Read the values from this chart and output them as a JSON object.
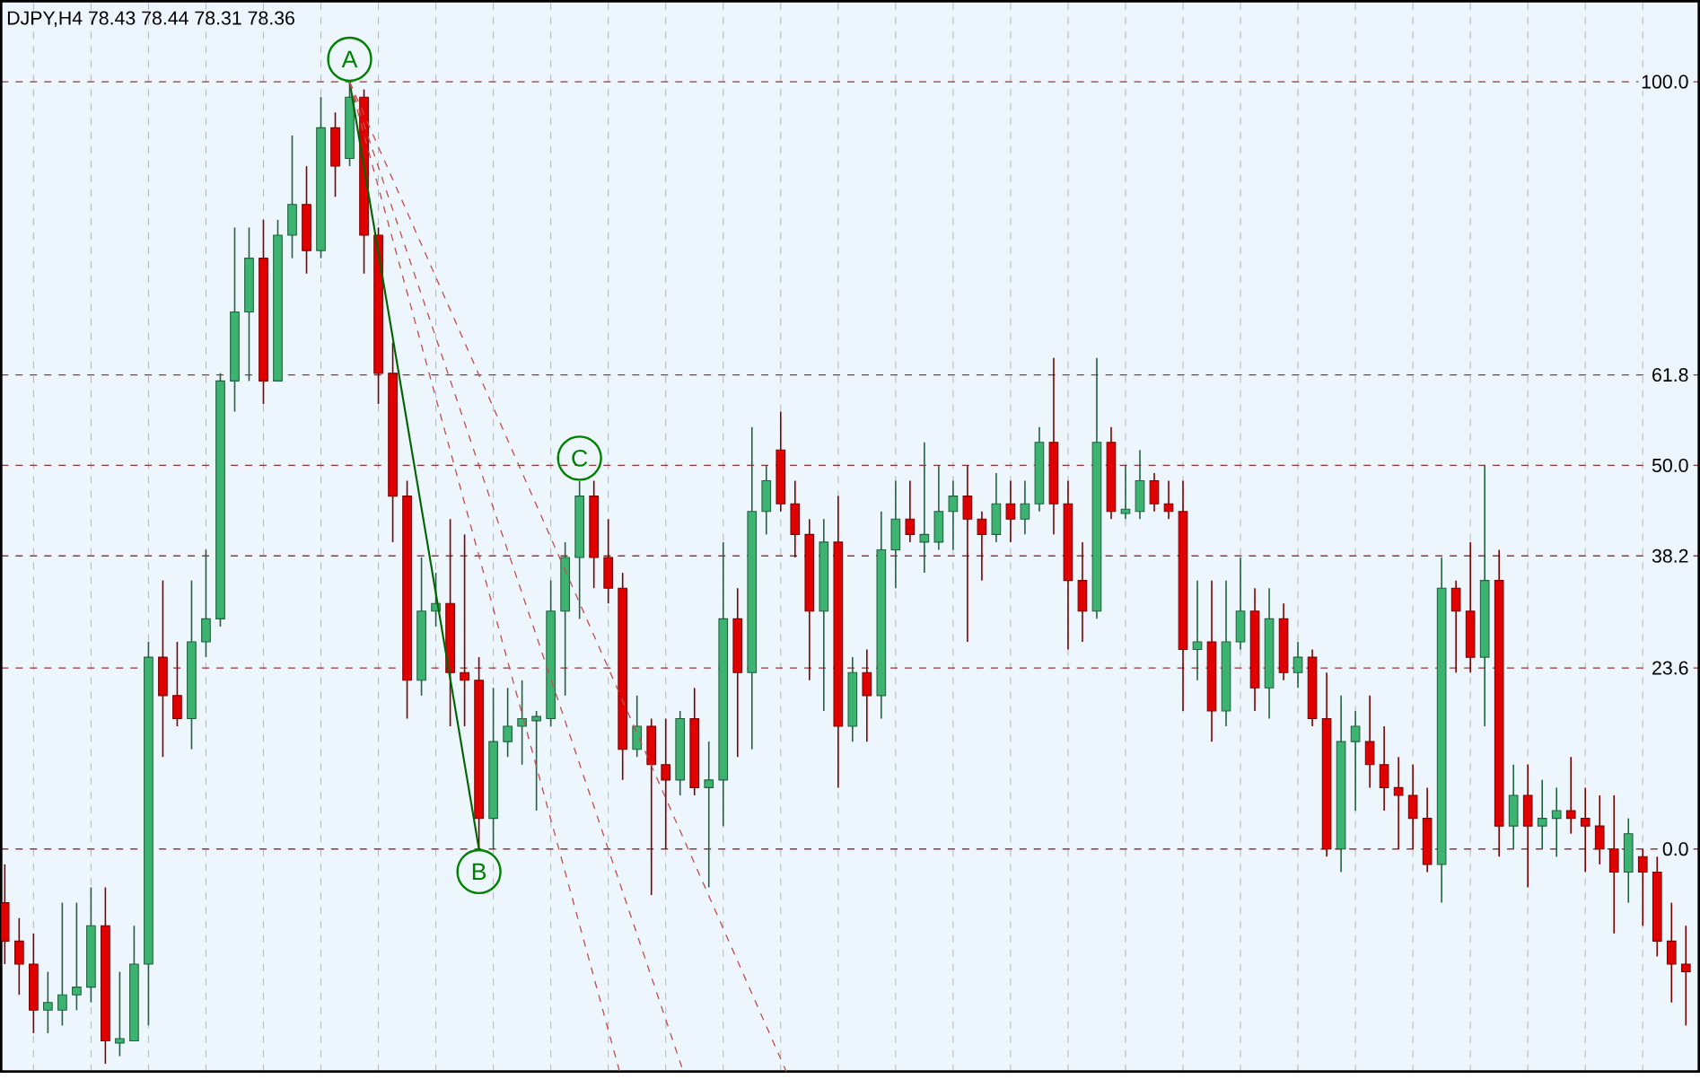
{
  "chart_data": {
    "type": "candlestick",
    "title": "DJPY,H4  78.43 78.44 78.31 78.36",
    "tick_labels": "y",
    "grid": true,
    "categories": [
      null,
      null,
      null,
      null,
      null,
      null,
      null,
      null,
      null,
      null,
      null,
      null,
      null,
      null,
      null,
      null,
      null,
      null,
      null,
      null,
      null,
      null,
      null,
      null,
      null,
      null,
      null,
      null,
      null,
      null,
      null,
      null,
      null,
      null,
      null,
      null,
      null,
      null,
      null,
      null,
      null,
      null,
      null,
      null,
      null,
      null,
      null,
      null,
      null,
      null,
      null,
      null,
      null,
      null,
      null,
      null,
      null,
      null,
      null,
      null,
      null,
      null,
      null,
      null,
      null,
      null,
      null,
      null,
      null,
      null,
      null,
      null,
      null,
      null,
      null,
      null,
      null,
      null,
      null,
      null,
      null,
      null,
      null,
      null,
      null,
      null,
      null,
      null,
      null,
      null,
      null,
      null,
      null,
      null,
      null,
      null,
      null,
      null,
      null,
      null,
      null,
      null,
      null,
      null,
      null,
      null,
      null,
      null,
      null,
      null,
      null,
      null,
      null,
      null,
      null,
      null,
      null,
      null
    ],
    "ylim": [
      -29,
      110.5
    ],
    "yticks": [
      {
        "value": 0,
        "label": "0.0"
      },
      {
        "value": 23.6,
        "label": "23.6"
      },
      {
        "value": 38.2,
        "label": "38.2"
      },
      {
        "value": 50,
        "label": "50.0"
      },
      {
        "value": 61.8,
        "label": "61.8"
      },
      {
        "value": 100,
        "label": "100.0"
      }
    ],
    "ohlc": [
      [
        -7,
        -2,
        -15,
        -12
      ],
      [
        -12,
        -9,
        -19,
        -15
      ],
      [
        -15,
        -11,
        -24,
        -21
      ],
      [
        -21,
        -16,
        -24,
        -20
      ],
      [
        -21,
        -7,
        -23,
        -19
      ],
      [
        -19,
        -7,
        -21,
        -18
      ],
      [
        -18,
        -5,
        -20,
        -10
      ],
      [
        -10,
        -5,
        -28,
        -25
      ],
      [
        -25,
        -16,
        -27,
        -25
      ],
      [
        -25,
        -10,
        -25,
        -15
      ],
      [
        -15,
        27,
        -23,
        25
      ],
      [
        25,
        35,
        12,
        20
      ],
      [
        20,
        27,
        16,
        17
      ],
      [
        17,
        35,
        13,
        27
      ],
      [
        27,
        39,
        25,
        30
      ],
      [
        30,
        62,
        29,
        61
      ],
      [
        61,
        81,
        57,
        70
      ],
      [
        70,
        81,
        61,
        77
      ],
      [
        77,
        82,
        58,
        61
      ],
      [
        61,
        82,
        61,
        80
      ],
      [
        80,
        93,
        77,
        84
      ],
      [
        84,
        89,
        75,
        78
      ],
      [
        78,
        98,
        77,
        94
      ],
      [
        94,
        96,
        85,
        89
      ],
      [
        90,
        100,
        89,
        98
      ],
      [
        98,
        99,
        75,
        80
      ],
      [
        80,
        81,
        58,
        62
      ],
      [
        62,
        66,
        40,
        46
      ],
      [
        46,
        48,
        17,
        22
      ],
      [
        22,
        38,
        20,
        31
      ],
      [
        31,
        36,
        29,
        32
      ],
      [
        32,
        43,
        16,
        23
      ],
      [
        23,
        41,
        16,
        22
      ],
      [
        22,
        25,
        0,
        4
      ],
      [
        4,
        21,
        0,
        14
      ],
      [
        14,
        21,
        12,
        16
      ],
      [
        16,
        22,
        11,
        17
      ],
      [
        17,
        18,
        5,
        17
      ],
      [
        17,
        35,
        16,
        31
      ],
      [
        31,
        40,
        20,
        38
      ],
      [
        38,
        48,
        30,
        46
      ],
      [
        46,
        48,
        34,
        38
      ],
      [
        38,
        43,
        32,
        34
      ],
      [
        34,
        36,
        9,
        13
      ],
      [
        13,
        20,
        12,
        16
      ],
      [
        16,
        17,
        -6,
        11
      ],
      [
        11,
        17,
        0,
        9
      ],
      [
        9,
        18,
        7,
        17
      ],
      [
        17,
        21,
        7,
        8
      ],
      [
        8,
        14,
        -5,
        9
      ],
      [
        9,
        40,
        3,
        30
      ],
      [
        30,
        34,
        12,
        23
      ],
      [
        23,
        55,
        13,
        44
      ],
      [
        44,
        50,
        41,
        48
      ],
      [
        52,
        57,
        44,
        45
      ],
      [
        45,
        48,
        38,
        41
      ],
      [
        41,
        43,
        22,
        31
      ],
      [
        31,
        43,
        18,
        40
      ],
      [
        40,
        46,
        8,
        16
      ],
      [
        16,
        25,
        14,
        23
      ],
      [
        23,
        26,
        14,
        20
      ],
      [
        20,
        44,
        17,
        39
      ],
      [
        39,
        48,
        34,
        43
      ],
      [
        43,
        48,
        40,
        41
      ],
      [
        40,
        53,
        36,
        41
      ],
      [
        40,
        50,
        39,
        44
      ],
      [
        44,
        48,
        39,
        46
      ],
      [
        46,
        50,
        27,
        43
      ],
      [
        43,
        44,
        35,
        41
      ],
      [
        41,
        49,
        40,
        45
      ],
      [
        45,
        48,
        40,
        43
      ],
      [
        43,
        48,
        41,
        45
      ],
      [
        45,
        55,
        44,
        53
      ],
      [
        53,
        64,
        41,
        45
      ],
      [
        45,
        48,
        26,
        35
      ],
      [
        35,
        40,
        27,
        31
      ],
      [
        31,
        64,
        30,
        53
      ],
      [
        53,
        55,
        43,
        44
      ],
      [
        44,
        50,
        43,
        44
      ],
      [
        44,
        52,
        43,
        48
      ],
      [
        48,
        49,
        44,
        45
      ],
      [
        45,
        48,
        43,
        44
      ],
      [
        44,
        48,
        18,
        26
      ],
      [
        26,
        35,
        22,
        27
      ],
      [
        27,
        35,
        14,
        18
      ],
      [
        18,
        35,
        16,
        27
      ],
      [
        27,
        38,
        26,
        31
      ],
      [
        31,
        34,
        18,
        21
      ],
      [
        21,
        34,
        17,
        30
      ],
      [
        30,
        32,
        22,
        23
      ],
      [
        23,
        27,
        21,
        25
      ],
      [
        25,
        26,
        16,
        17
      ],
      [
        17,
        23,
        -1,
        0
      ],
      [
        0,
        20,
        -3,
        14
      ],
      [
        14,
        18,
        5,
        16
      ],
      [
        14,
        20,
        8,
        11
      ],
      [
        11,
        16,
        5,
        8
      ],
      [
        8,
        12,
        0,
        7
      ],
      [
        7,
        11,
        0,
        4
      ],
      [
        4,
        8,
        -3,
        -2
      ],
      [
        -2,
        38,
        -7,
        34
      ],
      [
        34,
        35,
        23,
        31
      ],
      [
        31,
        40,
        23,
        25
      ],
      [
        25,
        50,
        16,
        35
      ],
      [
        35,
        39,
        -1,
        3
      ],
      [
        3,
        11,
        0,
        7
      ],
      [
        7,
        11,
        -5,
        3
      ],
      [
        3,
        9,
        0,
        4
      ],
      [
        4,
        8,
        -1,
        5
      ],
      [
        5,
        12,
        2,
        4
      ],
      [
        4,
        8,
        -3,
        3
      ],
      [
        3,
        7,
        -2,
        0
      ],
      [
        0,
        7,
        -11,
        -3
      ],
      [
        -3,
        4,
        -7,
        2
      ],
      [
        -1,
        0,
        -10,
        -3
      ],
      [
        -3,
        -1,
        -14,
        -12
      ],
      [
        -12,
        -7,
        -20,
        -15
      ],
      [
        -15,
        -10,
        -23,
        -16
      ]
    ],
    "colors": [
      "#e00000",
      "#e00000",
      "#e00000",
      "#3cb371",
      "#3cb371",
      "#3cb371",
      "#3cb371",
      "#e00000",
      "#3cb371",
      "#3cb371",
      "#3cb371",
      "#e00000",
      "#e00000",
      "#3cb371",
      "#3cb371",
      "#3cb371",
      "#3cb371",
      "#3cb371",
      "#e00000",
      "#3cb371",
      "#3cb371",
      "#e00000",
      "#3cb371",
      "#e00000",
      "#3cb371",
      "#e00000",
      "#e00000",
      "#e00000",
      "#e00000",
      "#3cb371",
      "#3cb371",
      "#e00000",
      "#e00000",
      "#e00000",
      "#3cb371",
      "#3cb371",
      "#3cb371",
      "#3cb371",
      "#3cb371",
      "#3cb371",
      "#3cb371",
      "#e00000",
      "#e00000",
      "#e00000",
      "#3cb371",
      "#e00000",
      "#e00000",
      "#3cb371",
      "#e00000",
      "#3cb371",
      "#3cb371",
      "#e00000",
      "#3cb371",
      "#3cb371",
      "#e00000",
      "#e00000",
      "#e00000",
      "#3cb371",
      "#e00000",
      "#3cb371",
      "#e00000",
      "#3cb371",
      "#3cb371",
      "#e00000",
      "#3cb371",
      "#3cb371",
      "#3cb371",
      "#e00000",
      "#e00000",
      "#3cb371",
      "#e00000",
      "#3cb371",
      "#3cb371",
      "#e00000",
      "#e00000",
      "#e00000",
      "#3cb371",
      "#e00000",
      "#3cb371",
      "#3cb371",
      "#e00000",
      "#e00000",
      "#e00000",
      "#3cb371",
      "#e00000",
      "#3cb371",
      "#3cb371",
      "#e00000",
      "#3cb371",
      "#e00000",
      "#3cb371",
      "#e00000",
      "#e00000",
      "#3cb371",
      "#3cb371",
      "#e00000",
      "#e00000",
      "#e00000",
      "#e00000",
      "#e00000",
      "#3cb371",
      "#e00000",
      "#e00000",
      "#3cb371",
      "#e00000",
      "#3cb371",
      "#e00000",
      "#3cb371",
      "#3cb371",
      "#e00000",
      "#e00000",
      "#e00000",
      "#e00000",
      "#3cb371",
      "#e00000",
      "#e00000",
      "#e00000",
      "#e00000"
    ],
    "annotations": [
      {
        "text": "A",
        "y": 100
      },
      {
        "text": "B",
        "y": 0
      },
      {
        "text": "C",
        "y": 48
      }
    ]
  }
}
